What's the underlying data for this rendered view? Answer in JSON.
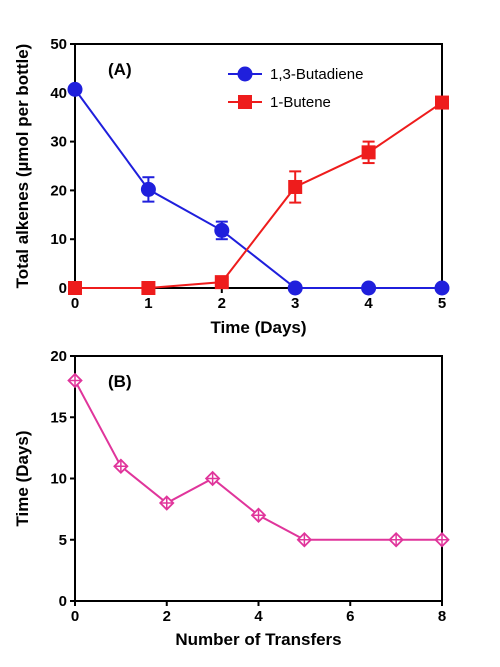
{
  "chart_data": [
    {
      "panel": "(A)",
      "type": "line",
      "xlabel": "Time (Days)",
      "ylabel": "Total alkenes (µmol per bottle)",
      "xlim": [
        0,
        5
      ],
      "ylim": [
        0,
        50
      ],
      "xticks": [
        0,
        1,
        2,
        3,
        4,
        5
      ],
      "yticks": [
        0,
        10,
        20,
        30,
        40,
        50
      ],
      "grid": false,
      "legend_position": "top-right",
      "series": [
        {
          "name": "1,3-Butadiene",
          "color": "#1f1fdc",
          "marker": "circle",
          "x": [
            0,
            1,
            2,
            3,
            4,
            5
          ],
          "y": [
            40.7,
            20.2,
            11.8,
            0,
            0,
            0
          ],
          "error": [
            0.7,
            2.5,
            1.8,
            0,
            0,
            0
          ]
        },
        {
          "name": "1-Butene",
          "color": "#ee1c1c",
          "marker": "square",
          "x": [
            0,
            1,
            2,
            3,
            4,
            5
          ],
          "y": [
            0,
            0,
            1.2,
            20.7,
            27.8,
            38
          ],
          "error": [
            0,
            0,
            0,
            3.2,
            2.2,
            0.5
          ]
        }
      ]
    },
    {
      "panel": "(B)",
      "type": "line",
      "xlabel": "Number of Transfers",
      "ylabel": "Time (Days)",
      "xlim": [
        0,
        8
      ],
      "ylim": [
        0,
        20
      ],
      "xticks": [
        0,
        2,
        4,
        6,
        8
      ],
      "yticks": [
        0,
        5,
        10,
        15,
        20
      ],
      "grid": false,
      "series": [
        {
          "color": "#e0359b",
          "marker": "crossed-diamond",
          "x": [
            0,
            1,
            2,
            3,
            4,
            5,
            7,
            8
          ],
          "y": [
            18,
            11,
            8,
            10,
            7,
            5,
            5,
            5
          ]
        }
      ]
    }
  ]
}
